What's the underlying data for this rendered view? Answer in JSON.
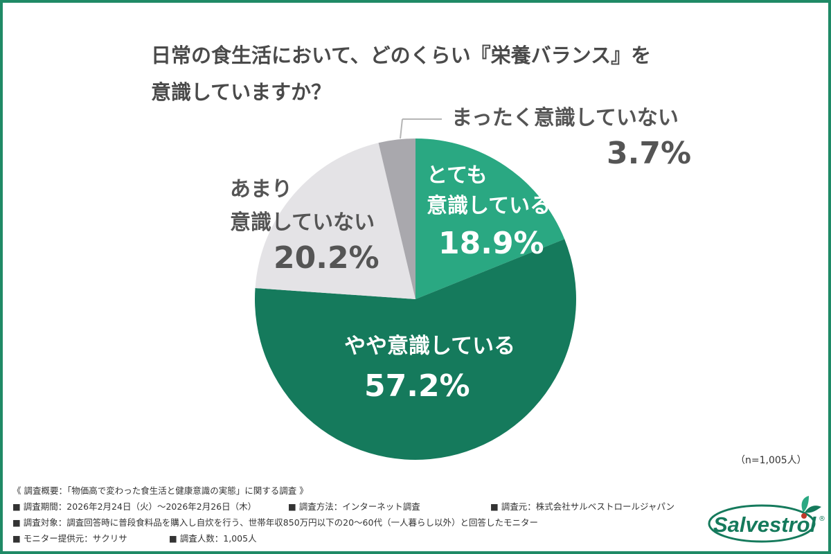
{
  "title_lines": [
    "日常の食生活において、どのくらい『栄養バランス』を",
    "意識していますか？"
  ],
  "chart_data": {
    "type": "pie",
    "title": "日常の食生活において、どのくらい『栄養バランス』を意識していますか？",
    "start": "12 o'clock, clockwise",
    "slices": [
      {
        "label_lines": [
          "とても",
          "意識している"
        ],
        "value": 18.9,
        "value_label": "18.9%",
        "color": "#2aa882",
        "text_color": "#ffffff"
      },
      {
        "label_lines": [
          "やや意識している"
        ],
        "value": 57.2,
        "value_label": "57.2%",
        "color": "#157a5c",
        "text_color": "#ffffff"
      },
      {
        "label_lines": [
          "あまり",
          "意識していない"
        ],
        "value": 20.2,
        "value_label": "20.2%",
        "color": "#e4e3e6",
        "text_color": "#555555"
      },
      {
        "label_lines": [
          "まったく意識していない"
        ],
        "value": 3.7,
        "value_label": "3.7%",
        "color": "#a9a8ad",
        "text_color": "#555555"
      }
    ]
  },
  "sample_size": "（n=1,005人）",
  "footer": {
    "overview": "《 調査概要：「物価高で変わった食生活と健康意識の実態」に関する調査 》",
    "period": "■ 調査期間：2026年2月24日（火）〜2026年2月26日（木）",
    "method": "■ 調査方法：インターネット調査",
    "provider": "■ 調査元：株式会社サルベストロールジャパン",
    "target": "■ 調査対象：調査回答時に普段食料品を購入し自炊を行う、世帯年収850万円以下の20〜60代（一人暮らし以外）と回答したモニター",
    "monitor_source": "■ モニター提供元：サクリサ",
    "respondents": "■ 調査人数：1,005人"
  },
  "logo": {
    "text": "Salvestrol",
    "mark": "®",
    "color": "#157a5c"
  }
}
